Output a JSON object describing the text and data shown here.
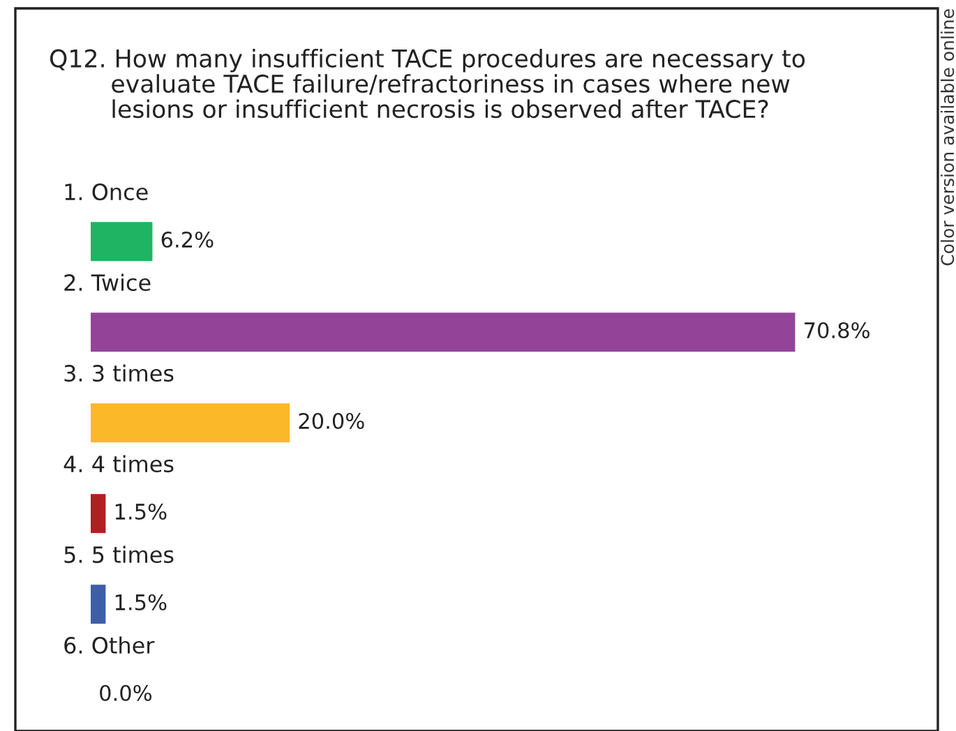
{
  "chart_data": {
    "type": "bar",
    "orientation": "horizontal",
    "title": "Q12. How many insufficient TACE procedures are necessary to\n        evaluate TACE failure/refractoriness in cases where new\n        lesions or insufficient necrosis is observed after TACE?",
    "categories": [
      "1. Once",
      "2. Twice",
      "3. 3 times",
      "4. 4 times",
      "5. 5 times",
      "6. Other"
    ],
    "values": [
      6.2,
      70.8,
      20.0,
      1.5,
      1.5,
      0.0
    ],
    "colors": [
      "#1fb464",
      "#934499",
      "#fbb829",
      "#b01f24",
      "#3f5ea8",
      "#808080"
    ],
    "value_labels": [
      "6.2%",
      "70.8%",
      "20.0%",
      "1.5%",
      "1.5%",
      "0.0%"
    ],
    "annotations": [
      "Color version available online"
    ]
  }
}
